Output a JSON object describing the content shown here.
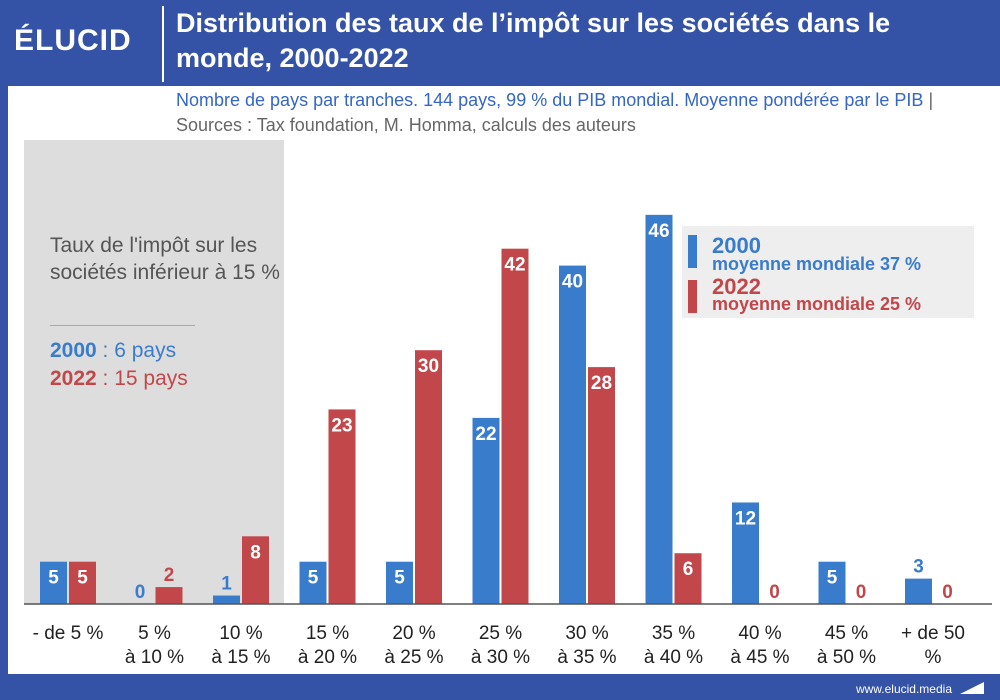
{
  "brand": {
    "logo_text": "ÉLUCID",
    "footer_url": "www.elucid.media"
  },
  "title": "Distribution des taux de l’impôt sur les sociétés dans le monde, 2000-2022",
  "subtitle": {
    "main": "Nombre de pays par tranches. 144 pays, 99 % du PIB mondial. Moyenne pondérée par le PIB",
    "separator": " | ",
    "sources": "Sources : Tax foundation, M. Homma, calculs des auteurs"
  },
  "note": {
    "text": "Taux de l'impôt sur les sociétés inférieur à 15 %",
    "line1_year": "2000",
    "line1_text": " : 6 pays",
    "line2_year": "2022",
    "line2_text": " : 15 pays"
  },
  "legend": {
    "item1_year": "2000",
    "item1_desc": "moyenne mondiale 37 %",
    "item2_year": "2022",
    "item2_desc": "moyenne mondiale 25 %"
  },
  "colors": {
    "blue": "#3a7ccc",
    "red": "#c2474a",
    "header": "#3452a6",
    "shade": "#dddddd"
  },
  "chart_data": {
    "type": "bar",
    "categories": [
      [
        "- de 5 %"
      ],
      [
        "5 %",
        "à 10 %"
      ],
      [
        "10 %",
        "à 15 %"
      ],
      [
        "15 %",
        "à 20 %"
      ],
      [
        "20 %",
        "à 25 %"
      ],
      [
        "25 %",
        "à 30 %"
      ],
      [
        "30 %",
        "à 35 %"
      ],
      [
        "35 %",
        "à 40 %"
      ],
      [
        "40 %",
        "à 45 %"
      ],
      [
        "45 %",
        "à 50 %"
      ],
      [
        "+ de 50",
        "%"
      ]
    ],
    "series": [
      {
        "name": "2000",
        "color": "#3a7ccc",
        "values": [
          5,
          0,
          1,
          5,
          5,
          22,
          40,
          46,
          12,
          5,
          3
        ]
      },
      {
        "name": "2022",
        "color": "#c2474a",
        "values": [
          5,
          2,
          8,
          23,
          30,
          42,
          28,
          6,
          0,
          0,
          0
        ]
      }
    ],
    "ylim": [
      0,
      50
    ]
  }
}
